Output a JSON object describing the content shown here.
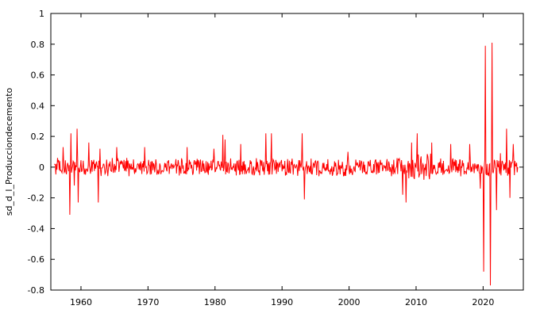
{
  "chart_data": {
    "type": "line",
    "title": "",
    "xlabel": "",
    "ylabel": "sd_d_l_Produccion​decemento",
    "xlim": [
      1955.5,
      2026.0
    ],
    "ylim": [
      -0.8,
      1.0
    ],
    "x_ticks": [
      1960,
      1970,
      1980,
      1990,
      2000,
      2010,
      2020
    ],
    "y_ticks": [
      -0.8,
      -0.6,
      -0.4,
      -0.2,
      0,
      0.2,
      0.4,
      0.6,
      0.8,
      1
    ],
    "x_tick_labels": [
      "1960",
      "1970",
      "1980",
      "1990",
      "2000",
      "2010",
      "2020"
    ],
    "y_tick_labels": [
      "-0.8",
      "-0.6",
      "-0.4",
      "-0.2",
      "0",
      "0.2",
      "0.4",
      "0.6",
      "0.8",
      "1"
    ],
    "grid": false,
    "line_color": "#ff0000",
    "series": [
      {
        "name": "",
        "x_start": 1956.0,
        "x_step_months": 1,
        "spikes": [
          [
            1956.5,
            0.06
          ],
          [
            1957.3,
            0.13
          ],
          [
            1958.3,
            -0.31
          ],
          [
            1958.5,
            0.22
          ],
          [
            1959.0,
            -0.12
          ],
          [
            1959.4,
            0.25
          ],
          [
            1959.6,
            -0.23
          ],
          [
            1961.2,
            0.16
          ],
          [
            1962.6,
            -0.23
          ],
          [
            1962.8,
            0.12
          ],
          [
            1965.3,
            0.13
          ],
          [
            1969.5,
            0.13
          ],
          [
            1975.8,
            0.13
          ],
          [
            1979.8,
            0.12
          ],
          [
            1981.2,
            0.21
          ],
          [
            1981.5,
            0.18
          ],
          [
            1983.8,
            0.15
          ],
          [
            1987.6,
            0.22
          ],
          [
            1988.4,
            0.22
          ],
          [
            1993.0,
            0.22
          ],
          [
            1993.3,
            -0.21
          ],
          [
            1999.8,
            0.1
          ],
          [
            2008.0,
            -0.18
          ],
          [
            2008.5,
            -0.23
          ],
          [
            2009.3,
            0.16
          ],
          [
            2010.2,
            0.22
          ],
          [
            2012.3,
            0.16
          ],
          [
            2015.2,
            0.15
          ],
          [
            2018.0,
            0.15
          ],
          [
            2019.6,
            -0.14
          ],
          [
            2020.1,
            -0.68
          ],
          [
            2020.3,
            0.79
          ],
          [
            2021.1,
            -0.77
          ],
          [
            2021.3,
            0.81
          ],
          [
            2022.0,
            -0.28
          ],
          [
            2022.6,
            0.09
          ],
          [
            2023.5,
            0.25
          ],
          [
            2024.0,
            -0.2
          ],
          [
            2024.5,
            0.15
          ]
        ],
        "noise_amplitude": 0.06,
        "noise_amplitude_2009_2012": 0.1
      }
    ]
  }
}
